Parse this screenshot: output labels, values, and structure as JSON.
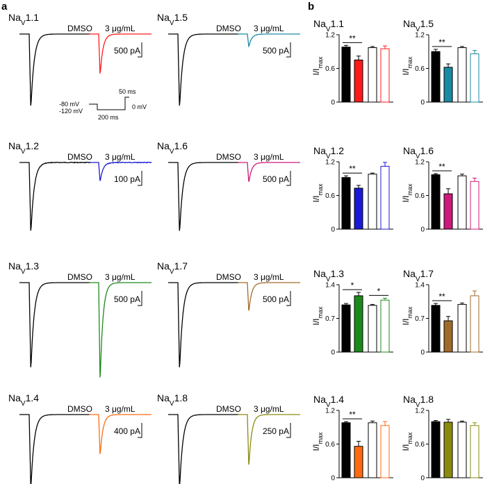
{
  "panel_labels": {
    "a": "a",
    "b": "b"
  },
  "conditions": {
    "control": "DMSO",
    "treated": "3 μg/mL"
  },
  "channel_prefix": "Na",
  "channel_subscript": "V",
  "protocol": {
    "hold": "-80 mV",
    "prepulse": "-120 mV",
    "test": "0 mV",
    "prepulse_duration": "200 ms",
    "test_duration": "50 ms"
  },
  "traces": [
    {
      "channel": "1.1",
      "scale": "500 pA",
      "color": "#ff1a1a",
      "dmso_peak": 1.0,
      "treated_peak": 0.55,
      "noise": 0.0
    },
    {
      "channel": "1.5",
      "scale": "500 pA",
      "color": "#1a8aa3",
      "dmso_peak": 1.0,
      "treated_peak": 0.17,
      "noise": 0.0
    },
    {
      "channel": "1.2",
      "scale": "100 pA",
      "color": "#1a1ad6",
      "dmso_peak": 1.0,
      "treated_peak": 0.27,
      "noise": 0.025
    },
    {
      "channel": "1.6",
      "scale": "500 pA",
      "color": "#cc1a7a",
      "dmso_peak": 1.0,
      "treated_peak": 0.28,
      "noise": 0.0
    },
    {
      "channel": "1.3",
      "scale": "500 pA",
      "color": "#1a8a1a",
      "dmso_peak": 1.0,
      "treated_peak": 1.12,
      "noise": 0.0
    },
    {
      "channel": "1.7",
      "scale": "500 pA",
      "color": "#a06a2a",
      "dmso_peak": 1.0,
      "treated_peak": 0.33,
      "noise": 0.0
    },
    {
      "channel": "1.4",
      "scale": "400 pA",
      "color": "#ff6a10",
      "dmso_peak": 1.0,
      "treated_peak": 0.55,
      "noise": 0.0
    },
    {
      "channel": "1.8",
      "scale": "250 pA",
      "color": "#8a8a10",
      "dmso_peak": 1.0,
      "treated_peak": 0.7,
      "noise": 0.0
    }
  ],
  "chart_data": [
    {
      "type": "bar",
      "channel": "1.1",
      "color": "#ff1a1a",
      "ylabel": "I/I",
      "ylabel_sub": "max",
      "ylim": [
        0,
        1.2
      ],
      "yticks": [
        "0",
        "0.6",
        "1.2"
      ],
      "values": [
        0.98,
        0.75,
        0.97,
        0.95
      ],
      "errors": [
        0.03,
        0.07,
        0.02,
        0.05
      ],
      "significance": [
        {
          "from": 0,
          "to": 1,
          "label": "**"
        }
      ]
    },
    {
      "type": "bar",
      "channel": "1.5",
      "color": "#1a8aa3",
      "ylabel": "I/I",
      "ylabel_sub": "max",
      "ylim": [
        0,
        1.2
      ],
      "yticks": [
        "0",
        "0.6",
        "1.2"
      ],
      "values": [
        0.9,
        0.62,
        0.97,
        0.86
      ],
      "errors": [
        0.04,
        0.06,
        0.02,
        0.06
      ],
      "significance": [
        {
          "from": 0,
          "to": 1,
          "label": "**"
        }
      ]
    },
    {
      "type": "bar",
      "channel": "1.2",
      "color": "#1a1ad6",
      "ylabel": "I/I",
      "ylabel_sub": "max",
      "ylim": [
        0,
        1.2
      ],
      "yticks": [
        "0",
        "0.6",
        "1.2"
      ],
      "values": [
        0.92,
        0.73,
        0.98,
        1.12
      ],
      "errors": [
        0.03,
        0.05,
        0.02,
        0.07
      ],
      "significance": [
        {
          "from": 0,
          "to": 1,
          "label": "**"
        }
      ]
    },
    {
      "type": "bar",
      "channel": "1.6",
      "color": "#cc1a7a",
      "ylabel": "I/I",
      "ylabel_sub": "max",
      "ylim": [
        0,
        1.2
      ],
      "yticks": [
        "0",
        "0.6",
        "1.2"
      ],
      "values": [
        0.97,
        0.63,
        0.95,
        0.85
      ],
      "errors": [
        0.02,
        0.09,
        0.03,
        0.06
      ],
      "significance": [
        {
          "from": 0,
          "to": 1,
          "label": "**"
        }
      ]
    },
    {
      "type": "bar",
      "channel": "1.3",
      "color": "#1a8a1a",
      "ylabel": "I/I",
      "ylabel_sub": "max",
      "ylim": [
        0,
        1.4
      ],
      "yticks": [
        "0",
        "0.7",
        "1.4"
      ],
      "values": [
        0.98,
        1.17,
        0.97,
        1.08
      ],
      "errors": [
        0.03,
        0.07,
        0.02,
        0.04
      ],
      "significance": [
        {
          "from": 0,
          "to": 1,
          "label": "*"
        },
        {
          "from": 2,
          "to": 3,
          "label": "*"
        }
      ]
    },
    {
      "type": "bar",
      "channel": "1.7",
      "color": "#a06a2a",
      "ylabel": "I/I",
      "ylabel_sub": "max",
      "ylim": [
        0,
        1.4
      ],
      "yticks": [
        "0",
        "0.7",
        "1.4"
      ],
      "values": [
        0.97,
        0.65,
        0.99,
        1.17
      ],
      "errors": [
        0.04,
        0.09,
        0.03,
        0.1
      ],
      "significance": [
        {
          "from": 0,
          "to": 1,
          "label": "**"
        }
      ]
    },
    {
      "type": "bar",
      "channel": "1.4",
      "color": "#ff6a10",
      "ylabel": "I/I",
      "ylabel_sub": "max",
      "ylim": [
        0,
        1.2
      ],
      "yticks": [
        "0",
        "0.6",
        "1.2"
      ],
      "values": [
        0.98,
        0.56,
        0.98,
        0.93
      ],
      "errors": [
        0.02,
        0.09,
        0.03,
        0.07
      ],
      "significance": [
        {
          "from": 0,
          "to": 1,
          "label": "**"
        }
      ]
    },
    {
      "type": "bar",
      "channel": "1.8",
      "color": "#8a8a10",
      "ylabel": "I/I",
      "ylabel_sub": "max",
      "ylim": [
        0,
        1.2
      ],
      "yticks": [
        "0",
        "0.6",
        "1.2"
      ],
      "values": [
        1.0,
        0.99,
        0.99,
        0.93
      ],
      "errors": [
        0.02,
        0.05,
        0.02,
        0.05
      ],
      "significance": []
    }
  ]
}
